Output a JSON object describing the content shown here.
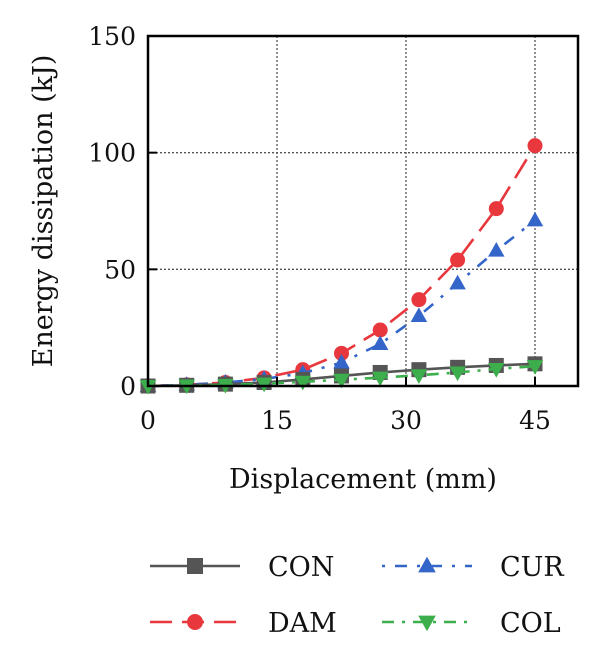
{
  "chart_data": {
    "type": "line",
    "xlabel": "Displacement (mm)",
    "ylabel": "Energy dissipation (kJ)",
    "xlim": [
      0,
      50
    ],
    "ylim": [
      0,
      150
    ],
    "xticks": [
      "0",
      "15",
      "30",
      "45"
    ],
    "yticks": [
      "0",
      "50",
      "100",
      "150"
    ],
    "grid": true,
    "legend_position": "below",
    "x": [
      0,
      4.5,
      9,
      13.5,
      18,
      22.5,
      27,
      31.5,
      36,
      40.5,
      45
    ],
    "series": [
      {
        "name": "CON",
        "color": "#555555",
        "marker": "square",
        "dash": "solid",
        "values": [
          0,
          0.3,
          0.8,
          1.5,
          2.8,
          4.3,
          5.8,
          7.0,
          8.0,
          8.8,
          9.5
        ]
      },
      {
        "name": "CUR",
        "color": "#3465c9",
        "marker": "triangle-up",
        "dash": "dot-dash",
        "values": [
          0,
          0.5,
          1.5,
          3.0,
          5.5,
          10.0,
          18.0,
          30.0,
          44.0,
          58.0,
          71.0
        ]
      },
      {
        "name": "DAM",
        "color": "#e8383d",
        "marker": "circle",
        "dash": "dash",
        "values": [
          0,
          0.5,
          1.5,
          3.5,
          7.0,
          14.0,
          24.0,
          37.0,
          54.0,
          76.0,
          103.0
        ]
      },
      {
        "name": "COL",
        "color": "#3cae4b",
        "marker": "triangle-down",
        "dash": "dash-dot",
        "values": [
          0,
          0.2,
          0.5,
          1.0,
          1.8,
          2.7,
          3.6,
          4.6,
          5.8,
          7.3,
          8.5
        ]
      }
    ]
  }
}
